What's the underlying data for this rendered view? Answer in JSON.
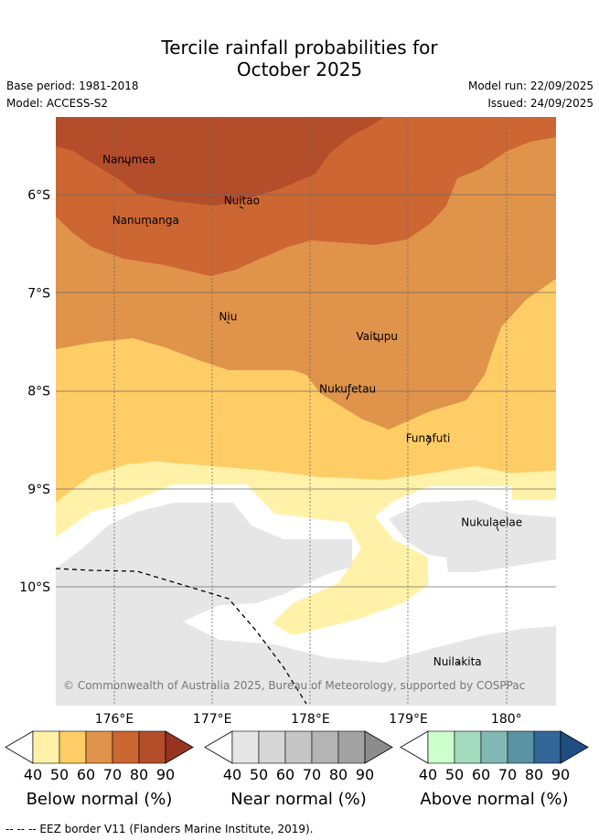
{
  "title_line1": "Tercile rainfall probabilities for",
  "title_line2": "October 2025",
  "base_period": "Base period: 1981-2018",
  "model": "Model: ACCESS-S2",
  "model_run": "Model run: 22/09/2025",
  "issued": "Issued: 24/09/2025",
  "lat_ticks": [
    "6°S",
    "7°S",
    "8°S",
    "9°S",
    "10°S"
  ],
  "lon_ticks": [
    "176°E",
    "177°E",
    "178°E",
    "179°E",
    "180°"
  ],
  "places": [
    {
      "name": "Nanumea",
      "lon": 176.15,
      "lat": -5.68
    },
    {
      "name": "Nuitao",
      "lon": 177.3,
      "lat": -6.1
    },
    {
      "name": "Nanumanga",
      "lon": 176.32,
      "lat": -6.3
    },
    {
      "name": "Niu",
      "lon": 177.16,
      "lat": -7.28
    },
    {
      "name": "Vaitupu",
      "lon": 178.68,
      "lat": -7.48
    },
    {
      "name": "Nukufetau",
      "lon": 178.38,
      "lat": -8.02
    },
    {
      "name": "Funafuti",
      "lon": 179.2,
      "lat": -8.52
    },
    {
      "name": "Nukulaelae",
      "lon": 179.85,
      "lat": -9.38
    },
    {
      "name": "Nuilakita",
      "lon": 179.5,
      "lat": -10.8
    }
  ],
  "copyright": "© Commonwealth of Australia 2025, Bureau of Meteorology, supported by COSPPac",
  "colorbars": [
    {
      "title": "Below normal (%)",
      "ticks": [
        "40",
        "50",
        "60",
        "70",
        "80",
        "90"
      ],
      "colors": [
        "#fff2a8",
        "#ffcd66",
        "#e0934a",
        "#cc6633",
        "#b34d2a",
        "#993322"
      ]
    },
    {
      "title": "Near normal (%)",
      "ticks": [
        "40",
        "50",
        "60",
        "70",
        "80",
        "90"
      ],
      "colors": [
        "#e6e6e6",
        "#d7d7d7",
        "#c6c6c6",
        "#b4b4b4",
        "#a2a2a2",
        "#8c8c8c"
      ]
    },
    {
      "title": "Above normal (%)",
      "ticks": [
        "40",
        "50",
        "60",
        "70",
        "80",
        "90"
      ],
      "colors": [
        "#ccffcc",
        "#a3dbbf",
        "#82b8b3",
        "#5a93a3",
        "#336699",
        "#1f4d80"
      ]
    }
  ],
  "eez_legend": "-- -- -- EEZ border V11 (Flanders Marine Institute, 2019)."
}
